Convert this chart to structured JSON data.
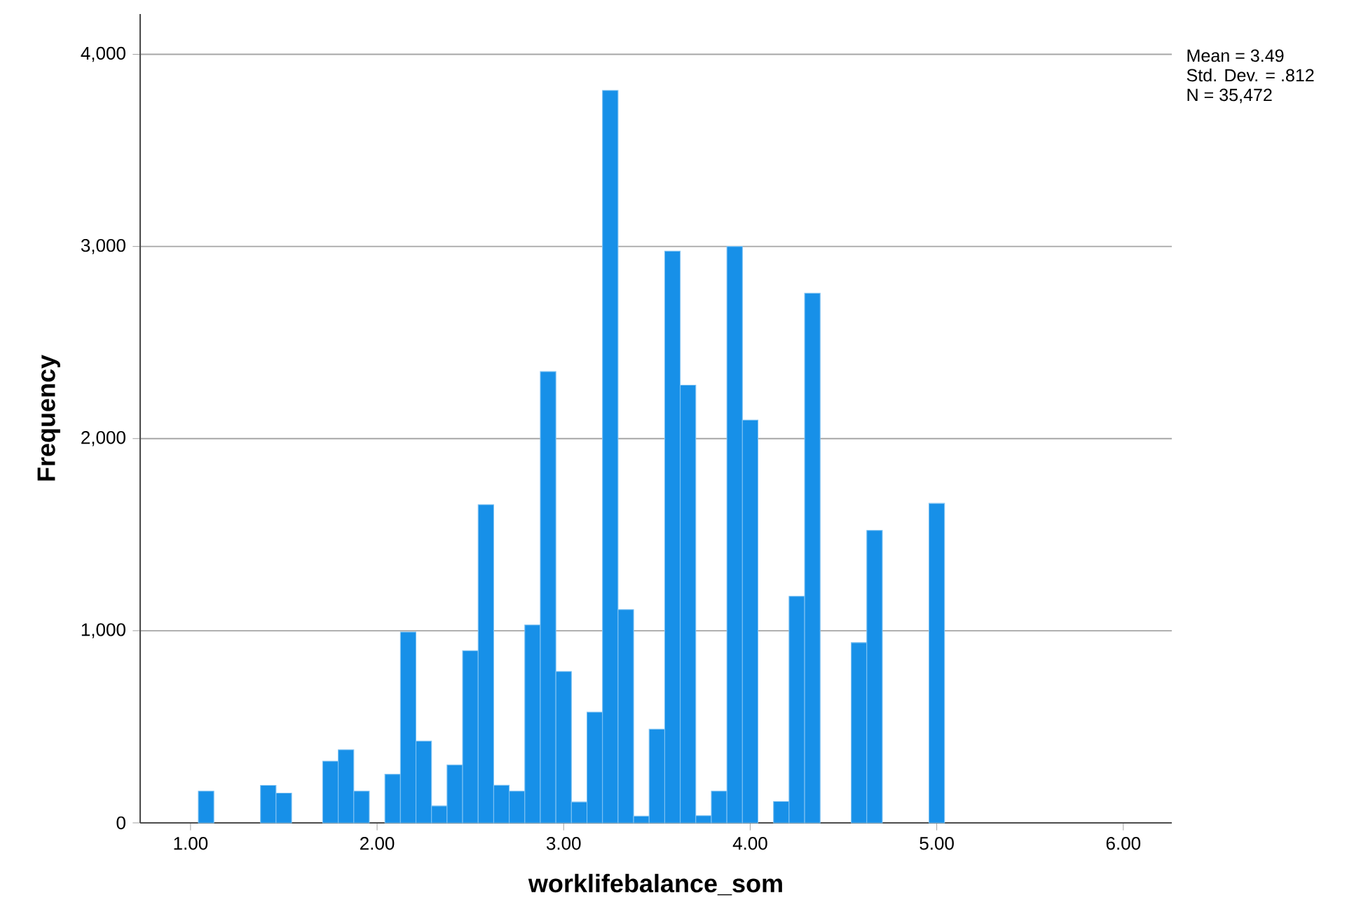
{
  "chart_data": {
    "type": "histogram",
    "xlabel": "worklifebalance_som",
    "ylabel": "Frequency",
    "annotations": [
      "Mean = 3.49",
      "Std. Dev. = .812",
      "N = 35,472"
    ],
    "bins": [
      1.0417,
      1.125,
      1.2083,
      1.2917,
      1.375,
      1.4583,
      1.5417,
      1.625,
      1.7083,
      1.7917,
      1.875,
      1.9583,
      2.0417,
      2.125,
      2.2083,
      2.2917,
      2.375,
      2.4583,
      2.5417,
      2.625,
      2.7083,
      2.7917,
      2.875,
      2.9583,
      3.0417,
      3.125,
      3.2083,
      3.2917,
      3.375,
      3.4583,
      3.5417,
      3.625,
      3.7083,
      3.7917,
      3.875,
      3.9583,
      4.0417,
      4.125,
      4.2083,
      4.2917,
      4.375,
      4.4583,
      4.5417,
      4.625,
      4.7083,
      4.7917,
      4.875,
      4.9583,
      5.0417
    ],
    "values": [
      165,
      0,
      0,
      0,
      195,
      155,
      0,
      0,
      321,
      380,
      165,
      0,
      253,
      993,
      426,
      88,
      302,
      896,
      1656,
      196,
      165,
      1030,
      2349,
      788,
      109,
      576,
      3812,
      1110,
      35,
      488,
      2976,
      2278,
      37,
      165,
      3000,
      2097,
      0,
      111,
      1179,
      2757,
      0,
      0,
      938,
      1522,
      0,
      0,
      0,
      1663
    ],
    "color": "#1790e8",
    "xlim": [
      0.73,
      6.26
    ],
    "xticks": [
      {
        "value": 1,
        "label": "1.00"
      },
      {
        "value": 2,
        "label": "2.00"
      },
      {
        "value": 3,
        "label": "3.00"
      },
      {
        "value": 4,
        "label": "4.00"
      },
      {
        "value": 5,
        "label": "5.00"
      },
      {
        "value": 6,
        "label": "6.00"
      }
    ],
    "ylim": [
      0,
      4210
    ],
    "yticks": [
      0,
      {
        "value": 1000,
        "label": "1,000"
      },
      {
        "value": 2000,
        "label": "2,000"
      },
      {
        "value": 3000,
        "label": "3,000"
      },
      {
        "value": 4000,
        "label": "4,000"
      }
    ],
    "grid": "y"
  }
}
